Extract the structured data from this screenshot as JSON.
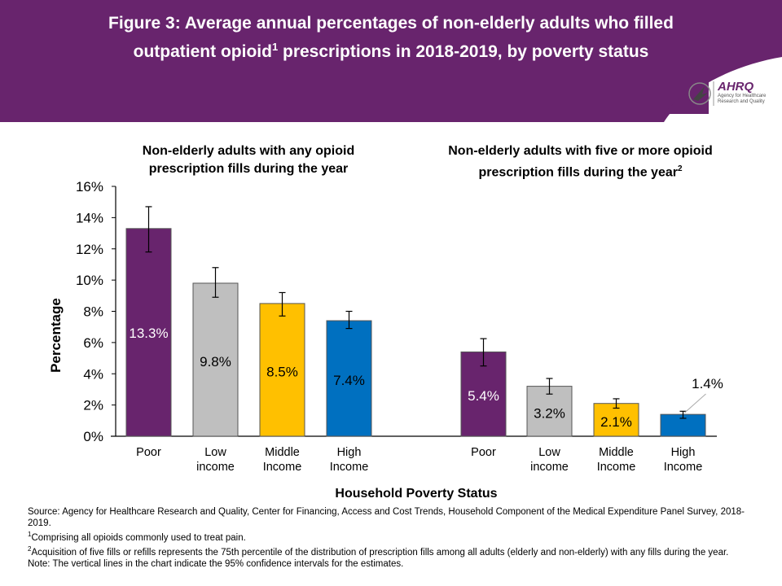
{
  "title": {
    "text_before_sup": "Figure 3: Average annual percentages of non-elderly adults who filled outpatient opioid",
    "sup": "1",
    "text_after_sup": " prescriptions in 2018-2019, by poverty status"
  },
  "logo": {
    "name": "AHRQ",
    "subtitle": "Agency for Healthcare Research and Quality",
    "icon": "hhs-eagle-icon"
  },
  "colors": {
    "header": "#68246d",
    "poor": "#68246d",
    "low": "#bfbfbf",
    "middle": "#ffc000",
    "high": "#0070c0"
  },
  "chart_data": {
    "type": "bar",
    "ylabel": "Percentage",
    "xlabel": "Household Poverty Status",
    "ylim": [
      0,
      16
    ],
    "yticks": [
      "0%",
      "2%",
      "4%",
      "6%",
      "8%",
      "10%",
      "12%",
      "14%",
      "16%"
    ],
    "grid": false,
    "panels": [
      {
        "title": "Non-elderly adults with any opioid prescription fills during the year",
        "title_sup": "",
        "categories": [
          "Poor",
          "Low income",
          "Middle Income",
          "High Income"
        ],
        "values": [
          13.3,
          9.8,
          8.5,
          7.4
        ],
        "labels": [
          "13.3%",
          "9.8%",
          "8.5%",
          "7.4%"
        ],
        "ci_low": [
          11.8,
          8.9,
          7.7,
          6.9
        ],
        "ci_high": [
          14.7,
          10.8,
          9.2,
          8.0
        ]
      },
      {
        "title": "Non-elderly adults with five or more opioid prescription fills during the year",
        "title_sup": "2",
        "categories": [
          "Poor",
          "Low income",
          "Middle Income",
          "High Income"
        ],
        "values": [
          5.4,
          3.2,
          2.1,
          1.4
        ],
        "labels": [
          "5.4%",
          "3.2%",
          "2.1%",
          "1.4%"
        ],
        "ci_low": [
          4.5,
          2.7,
          1.8,
          1.15
        ],
        "ci_high": [
          6.25,
          3.7,
          2.4,
          1.6
        ]
      }
    ]
  },
  "footnotes": {
    "source": "Source: Agency for Healthcare Research and Quality, Center for Financing, Access and Cost Trends, Household Component of the Medical Expenditure Panel Survey, 2018-2019.",
    "note1_sup": "1",
    "note1": "Comprising all opioids commonly used to treat pain.",
    "note2_sup": "2",
    "note2": "Acquisition of five fills or refills represents the 75th percentile of the distribution of prescription fills among all adults (elderly and non-elderly) with any fills during the year.",
    "note3": "Note: The vertical lines in the chart indicate the 95% confidence intervals for the estimates."
  }
}
